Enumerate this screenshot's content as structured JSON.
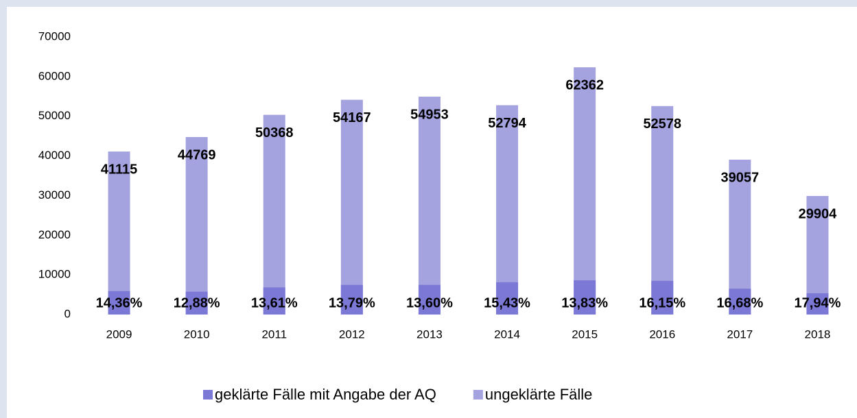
{
  "chart_data": {
    "type": "bar",
    "overlap": true,
    "categories": [
      "2009",
      "2010",
      "2011",
      "2012",
      "2013",
      "2014",
      "2015",
      "2016",
      "2017",
      "2018"
    ],
    "series": [
      {
        "name": "ungeklärte Fälle",
        "color": "#a4a3df",
        "values": [
          41115,
          44769,
          50368,
          54167,
          54953,
          52794,
          62362,
          52578,
          39057,
          29904
        ]
      },
      {
        "name": "geklärte Fälle mit Angabe der AQ",
        "color": "#7c78d6",
        "values": [
          5904,
          5766,
          6855,
          7470,
          7474,
          8146,
          8625,
          8491,
          6515,
          5365
        ],
        "annotations": [
          "14,36%",
          "12,88%",
          "13,61%",
          "13,79%",
          "13,60%",
          "15,43%",
          "13,83%",
          "16,15%",
          "16,68%",
          "17,94%"
        ]
      }
    ],
    "legend_order": [
      1,
      0
    ],
    "ylim": [
      0,
      70000
    ],
    "yticks": [
      0,
      10000,
      20000,
      30000,
      40000,
      50000,
      60000,
      70000
    ],
    "grid": false
  }
}
